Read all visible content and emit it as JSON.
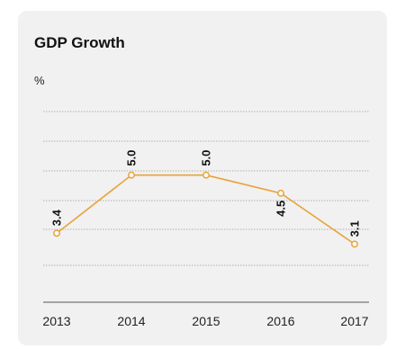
{
  "chart_data": {
    "type": "line",
    "title": "GDP Growth",
    "ylabel": "%",
    "xlabel": "",
    "categories": [
      "2013",
      "2014",
      "2015",
      "2016",
      "2017"
    ],
    "series": [
      {
        "values": [
          3.4,
          5.0,
          5.0,
          4.5,
          3.1
        ]
      }
    ],
    "data_labels": [
      "3.4",
      "5.0",
      "5.0",
      "4.5",
      "3.1"
    ],
    "ylim": [
      1.5,
      6.75
    ],
    "grid": true,
    "legend": "none",
    "colors": {
      "series": "#e8a33a",
      "grid": "#9a9a9a",
      "axis": "#555555",
      "background": "#f1f1f1",
      "text": "#222222"
    }
  }
}
